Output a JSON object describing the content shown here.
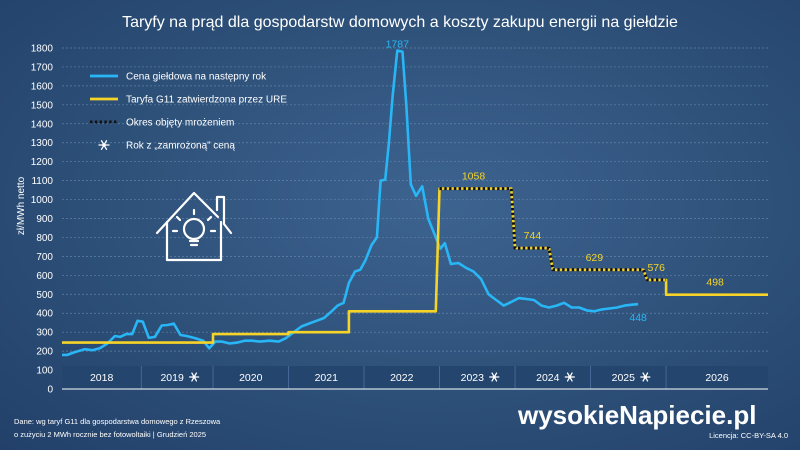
{
  "chart_data": {
    "type": "line",
    "title": "Taryfy na prąd dla gospodarstw domowych a koszty zakupu energii na giełdzie",
    "ylabel": "zł/MWh netto",
    "xlabel": "",
    "ylim": [
      0,
      1800
    ],
    "yticks": [
      0,
      100,
      200,
      300,
      400,
      500,
      600,
      700,
      800,
      900,
      1000,
      1100,
      1200,
      1300,
      1400,
      1500,
      1600,
      1700,
      1800
    ],
    "xlim": [
      2017.55,
      2026.9
    ],
    "year_bands": [
      {
        "label": "2018",
        "start": 2017.55,
        "end": 2018.6
      },
      {
        "label": "2019",
        "start": 2018.6,
        "end": 2019.55,
        "frozen": true
      },
      {
        "label": "2020",
        "start": 2019.55,
        "end": 2020.55
      },
      {
        "label": "2021",
        "start": 2020.55,
        "end": 2021.55
      },
      {
        "label": "2022",
        "start": 2021.55,
        "end": 2022.55
      },
      {
        "label": "2023",
        "start": 2022.55,
        "end": 2023.55,
        "frozen": true
      },
      {
        "label": "2024",
        "start": 2023.55,
        "end": 2024.55,
        "frozen": true
      },
      {
        "label": "2025",
        "start": 2024.55,
        "end": 2025.55,
        "frozen": true
      },
      {
        "label": "2026",
        "start": 2025.55,
        "end": 2026.9
      }
    ],
    "series": [
      {
        "name": "Cena giełdowa na następny rok",
        "color": "#29b6f6",
        "points": [
          [
            2017.55,
            180
          ],
          [
            2017.62,
            180
          ],
          [
            2017.72,
            195
          ],
          [
            2017.85,
            210
          ],
          [
            2017.95,
            205
          ],
          [
            2018.05,
            215
          ],
          [
            2018.15,
            240
          ],
          [
            2018.25,
            280
          ],
          [
            2018.32,
            275
          ],
          [
            2018.4,
            290
          ],
          [
            2018.48,
            290
          ],
          [
            2018.55,
            360
          ],
          [
            2018.62,
            355
          ],
          [
            2018.7,
            270
          ],
          [
            2018.78,
            275
          ],
          [
            2018.87,
            335
          ],
          [
            2018.95,
            338
          ],
          [
            2019.03,
            345
          ],
          [
            2019.12,
            285
          ],
          [
            2019.2,
            280
          ],
          [
            2019.3,
            270
          ],
          [
            2019.42,
            255
          ],
          [
            2019.5,
            215
          ],
          [
            2019.58,
            250
          ],
          [
            2019.67,
            250
          ],
          [
            2019.77,
            240
          ],
          [
            2019.87,
            245
          ],
          [
            2019.97,
            255
          ],
          [
            2020.07,
            255
          ],
          [
            2020.17,
            250
          ],
          [
            2020.3,
            255
          ],
          [
            2020.42,
            250
          ],
          [
            2020.52,
            270
          ],
          [
            2020.62,
            300
          ],
          [
            2020.72,
            330
          ],
          [
            2020.82,
            345
          ],
          [
            2020.92,
            360
          ],
          [
            2021.02,
            375
          ],
          [
            2021.12,
            410
          ],
          [
            2021.2,
            440
          ],
          [
            2021.28,
            455
          ],
          [
            2021.35,
            560
          ],
          [
            2021.43,
            620
          ],
          [
            2021.5,
            630
          ],
          [
            2021.57,
            680
          ],
          [
            2021.65,
            760
          ],
          [
            2021.72,
            800
          ],
          [
            2021.77,
            1100
          ],
          [
            2021.83,
            1105
          ],
          [
            2021.88,
            1300
          ],
          [
            2021.93,
            1550
          ],
          [
            2021.99,
            1787
          ],
          [
            2022.06,
            1780
          ],
          [
            2022.11,
            1500
          ],
          [
            2022.17,
            1080
          ],
          [
            2022.24,
            1020
          ],
          [
            2022.32,
            1070
          ],
          [
            2022.4,
            900
          ],
          [
            2022.48,
            820
          ],
          [
            2022.56,
            740
          ],
          [
            2022.62,
            770
          ],
          [
            2022.7,
            660
          ],
          [
            2022.8,
            665
          ],
          [
            2022.9,
            640
          ],
          [
            2023.0,
            620
          ],
          [
            2023.1,
            580
          ],
          [
            2023.2,
            500
          ],
          [
            2023.3,
            470
          ],
          [
            2023.4,
            440
          ],
          [
            2023.5,
            460
          ],
          [
            2023.6,
            480
          ],
          [
            2023.7,
            475
          ],
          [
            2023.8,
            470
          ],
          [
            2023.9,
            440
          ],
          [
            2024.0,
            430
          ],
          [
            2024.1,
            440
          ],
          [
            2024.2,
            455
          ],
          [
            2024.3,
            430
          ],
          [
            2024.4,
            430
          ],
          [
            2024.5,
            415
          ],
          [
            2024.6,
            410
          ],
          [
            2024.7,
            420
          ],
          [
            2024.8,
            425
          ],
          [
            2024.9,
            430
          ],
          [
            2025.0,
            440
          ],
          [
            2025.1,
            445
          ],
          [
            2025.18,
            448
          ]
        ]
      },
      {
        "name": "Taryfa G11 zatwierdzona przez URE",
        "color": "#f5d327",
        "points": [
          [
            2017.55,
            245
          ],
          [
            2019.55,
            245
          ],
          [
            2019.55,
            290
          ],
          [
            2020.55,
            290
          ],
          [
            2020.55,
            300
          ],
          [
            2021.35,
            300
          ],
          [
            2021.35,
            410
          ],
          [
            2022.5,
            410
          ],
          [
            2022.55,
            1058
          ],
          [
            2023.5,
            1058
          ],
          [
            2023.55,
            744
          ],
          [
            2024.0,
            744
          ],
          [
            2024.05,
            629
          ],
          [
            2025.25,
            629
          ],
          [
            2025.3,
            576
          ],
          [
            2025.55,
            576
          ],
          [
            2025.55,
            498
          ],
          [
            2026.9,
            498
          ]
        ]
      },
      {
        "name": "Okres objęty mrożeniem",
        "color": "#111111",
        "style": "dotted",
        "points": [
          [
            2022.55,
            1058
          ],
          [
            2023.5,
            1058
          ],
          [
            2023.55,
            744
          ],
          [
            2024.0,
            744
          ],
          [
            2024.05,
            629
          ],
          [
            2025.25,
            629
          ],
          [
            2025.3,
            576
          ],
          [
            2025.55,
            576
          ]
        ]
      }
    ],
    "data_labels": [
      {
        "text": "1787",
        "x": 2021.99,
        "y": 1787,
        "color": "#29b6f6"
      },
      {
        "text": "448",
        "x": 2025.18,
        "y": 448,
        "color": "#29b6f6"
      },
      {
        "text": "1058",
        "x": 2023.0,
        "y": 1058,
        "color": "#f5d327"
      },
      {
        "text": "744",
        "x": 2023.78,
        "y": 744,
        "color": "#f5d327"
      },
      {
        "text": "629",
        "x": 2024.6,
        "y": 629,
        "color": "#f5d327"
      },
      {
        "text": "576",
        "x": 2025.42,
        "y": 576,
        "color": "#f5d327"
      },
      {
        "text": "498",
        "x": 2026.2,
        "y": 498,
        "color": "#f5d327"
      }
    ],
    "legend": {
      "placement": "top-left",
      "entries": [
        {
          "label": "Cena giełdowa na następny rok",
          "kind": "line",
          "color": "#29b6f6"
        },
        {
          "label": "Taryfa G11 zatwierdzona przez URE",
          "kind": "line",
          "color": "#f5d327"
        },
        {
          "label": "Okres objęty mrożeniem",
          "kind": "dotted",
          "color": "#111111"
        },
        {
          "label": "Rok z „zamrożoną” ceną",
          "kind": "snowflake",
          "color": "#ffffff"
        }
      ]
    },
    "grid": true,
    "source_note": [
      "Dane: wg taryf G11 dla gospodarstwa domowego z Rzeszowa",
      "o zużyciu 2 MWh rocznie bez fotowoltaiki  |  Grudzień  2025"
    ],
    "logo": "wysokieNapiecie.pl",
    "license": "Licencja: CC-BY-SA 4.0"
  }
}
